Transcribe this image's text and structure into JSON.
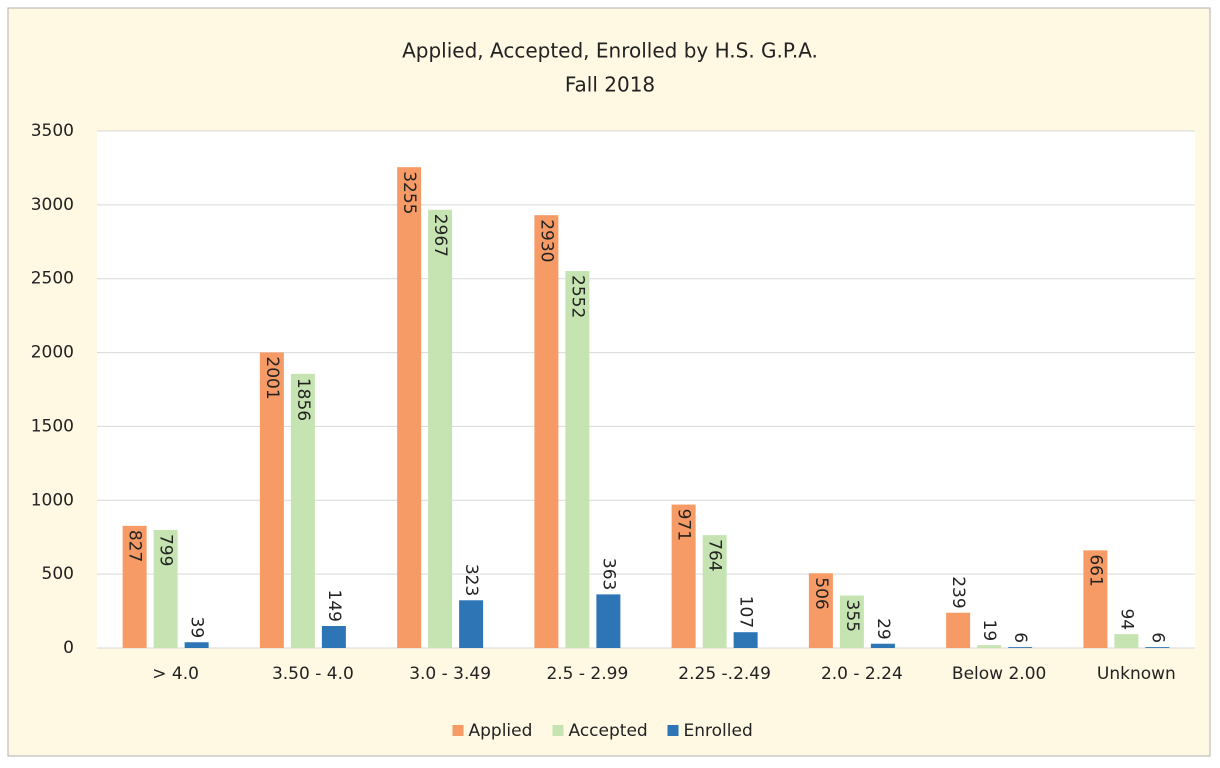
{
  "chart_data": {
    "type": "bar",
    "title": "Applied, Accepted, Enrolled by H.S. G.P.A.",
    "subtitle": "Fall 2018",
    "categories": [
      "> 4.0",
      "3.50 - 4.0",
      "3.0 - 3.49",
      "2.5 - 2.99",
      "2.25 -.2.49",
      "2.0 - 2.24",
      "Below 2.00",
      "Unknown"
    ],
    "series": [
      {
        "name": "Applied",
        "color": "#f79b66",
        "values": [
          827,
          2001,
          3255,
          2930,
          971,
          506,
          239,
          661
        ]
      },
      {
        "name": "Accepted",
        "color": "#c5e4b2",
        "values": [
          799,
          1856,
          2967,
          2552,
          764,
          355,
          19,
          94
        ]
      },
      {
        "name": "Enrolled",
        "color": "#2e75b6",
        "values": [
          39,
          149,
          323,
          363,
          107,
          29,
          6,
          6
        ]
      }
    ],
    "ylim": [
      0,
      3500
    ],
    "yticks": [
      0,
      500,
      1000,
      1500,
      2000,
      2500,
      3000,
      3500
    ],
    "grid": true,
    "legend": "bottom"
  }
}
